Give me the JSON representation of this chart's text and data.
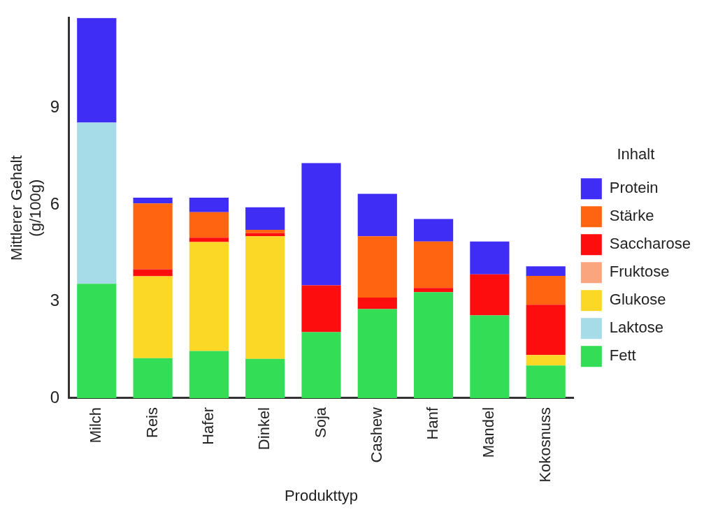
{
  "chart_data": {
    "type": "bar",
    "stacked": true,
    "xlabel": "Produkttyp",
    "ylabel": "Mittlerer Gehalt\n(g/100g)",
    "legend_title": "Inhalt",
    "legend": "right",
    "grid": false,
    "categories": [
      "Milch",
      "Reis",
      "Hafer",
      "Dinkel",
      "Soja",
      "Cashew",
      "Hanf",
      "Mandel",
      "Kokosnuss"
    ],
    "ylim": [
      0,
      11.8
    ],
    "yticks": [
      0,
      3,
      6,
      9
    ],
    "series": [
      {
        "name": "Fett",
        "color": "#33dd55",
        "values": [
          3.55,
          1.24,
          1.46,
          1.22,
          2.05,
          2.76,
          3.29,
          2.57,
          1.01
        ]
      },
      {
        "name": "Laktose",
        "color": "#a6dbe8",
        "values": [
          5.0,
          0,
          0,
          0,
          0,
          0,
          0,
          0,
          0
        ]
      },
      {
        "name": "Glukose",
        "color": "#fbd826",
        "values": [
          0,
          2.54,
          3.38,
          3.8,
          0,
          0,
          0,
          0,
          0.33
        ]
      },
      {
        "name": "Fruktose",
        "color": "#fba57e",
        "values": [
          0,
          0,
          0,
          0,
          0,
          0,
          0,
          0,
          0
        ]
      },
      {
        "name": "Saccharose",
        "color": "#fd0d0d",
        "values": [
          0,
          0.22,
          0.14,
          0.1,
          1.45,
          0.36,
          0.13,
          1.27,
          1.56
        ]
      },
      {
        "name": "Stärke",
        "color": "#ff6510",
        "values": [
          0,
          2.04,
          0.79,
          0.1,
          0,
          1.9,
          1.44,
          0,
          0.89
        ]
      },
      {
        "name": "Protein",
        "color": "#3f2df5",
        "values": [
          3.24,
          0.18,
          0.45,
          0.7,
          3.79,
          1.32,
          0.7,
          1.02,
          0.3
        ]
      }
    ]
  }
}
